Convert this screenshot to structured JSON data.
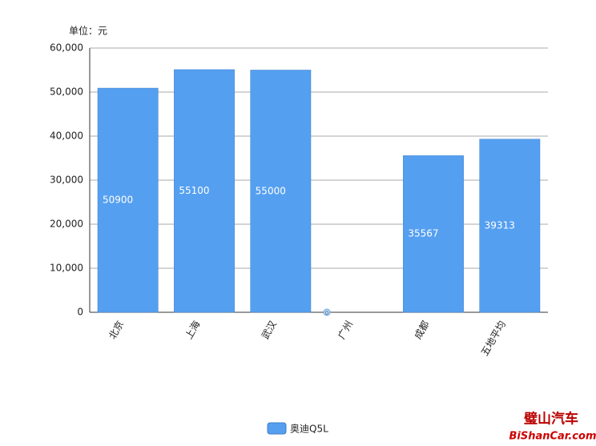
{
  "chart_data": {
    "type": "bar",
    "unit_label": "单位：元",
    "categories": [
      "北京",
      "上海",
      "武汉",
      "广州",
      "成都",
      "五地平均"
    ],
    "series": [
      {
        "name": "奥迪Q5L",
        "color": "#559ff0",
        "values": [
          50900,
          55100,
          55000,
          0,
          35567,
          39313
        ]
      }
    ],
    "ylim": [
      0,
      60000
    ],
    "yticks": [
      {
        "value": 0,
        "label": "0"
      },
      {
        "value": 10000,
        "label": "10,000"
      },
      {
        "value": 20000,
        "label": "20,000"
      },
      {
        "value": 30000,
        "label": "30,000"
      },
      {
        "value": 40000,
        "label": "40,000"
      },
      {
        "value": 50000,
        "label": "50,000"
      },
      {
        "value": 60000,
        "label": "60,000"
      }
    ],
    "grid": true,
    "watermark": {
      "title": "璧山汽车",
      "site": "BiShanCar.com"
    }
  }
}
